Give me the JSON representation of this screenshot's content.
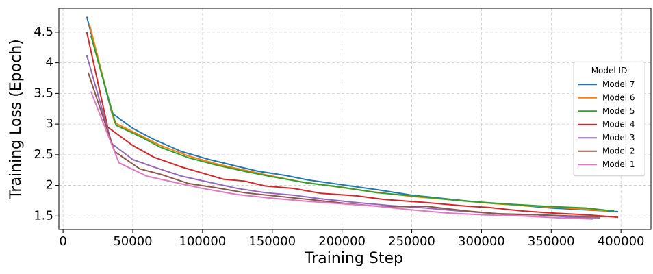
{
  "chart_data": {
    "type": "line",
    "xlabel": "Training Step",
    "ylabel": "Training Loss (Epoch)",
    "xlim": [
      -3000,
      422000
    ],
    "xticks": [
      0,
      50000,
      100000,
      150000,
      200000,
      250000,
      300000,
      350000,
      400000
    ],
    "ylim": [
      1.28,
      4.89
    ],
    "yticks": [
      1.5,
      2.0,
      2.5,
      3.0,
      3.5,
      4.0,
      4.5
    ],
    "grid": true,
    "legend_title": "Model ID",
    "legend_position": "center right",
    "series": [
      {
        "name": "Model 7",
        "color": "#1f77b4",
        "x": [
          17000,
          35000,
          50000,
          65000,
          85000,
          105000,
          125000,
          140000,
          160000,
          175000,
          200000,
          225000,
          250000,
          275000,
          300000,
          325000,
          350000,
          375000,
          398000
        ],
        "values": [
          4.75,
          3.18,
          2.93,
          2.75,
          2.55,
          2.42,
          2.31,
          2.23,
          2.16,
          2.09,
          2.01,
          1.93,
          1.84,
          1.78,
          1.72,
          1.68,
          1.63,
          1.6,
          1.57
        ]
      },
      {
        "name": "Model 6",
        "color": "#ff7f0e",
        "x": [
          19000,
          37000,
          55000,
          70000,
          90000,
          110000,
          130000,
          150000,
          170000,
          195000,
          220000,
          250000,
          280000,
          310000,
          340000,
          370000,
          390000
        ],
        "values": [
          4.62,
          3.02,
          2.82,
          2.65,
          2.48,
          2.35,
          2.25,
          2.15,
          2.06,
          1.98,
          1.9,
          1.82,
          1.76,
          1.7,
          1.66,
          1.62,
          1.58
        ]
      },
      {
        "name": "Model 5",
        "color": "#2ca02c",
        "x": [
          20000,
          38000,
          55000,
          70000,
          90000,
          110000,
          130000,
          150000,
          175000,
          200000,
          225000,
          255000,
          285000,
          315000,
          345000,
          375000,
          395000
        ],
        "values": [
          4.44,
          2.98,
          2.8,
          2.62,
          2.45,
          2.33,
          2.23,
          2.14,
          2.04,
          1.97,
          1.88,
          1.82,
          1.75,
          1.7,
          1.66,
          1.63,
          1.58
        ]
      },
      {
        "name": "Model 4",
        "color": "#d62728",
        "x": [
          17000,
          32000,
          50000,
          65000,
          85000,
          100000,
          115000,
          130000,
          145000,
          165000,
          185000,
          210000,
          230000,
          260000,
          290000,
          305000,
          330000,
          350000,
          375000,
          398000
        ],
        "values": [
          4.5,
          2.95,
          2.65,
          2.46,
          2.3,
          2.2,
          2.1,
          2.07,
          1.99,
          1.95,
          1.87,
          1.83,
          1.77,
          1.72,
          1.66,
          1.64,
          1.58,
          1.55,
          1.52,
          1.48
        ]
      },
      {
        "name": "Model 3",
        "color": "#9467bd",
        "x": [
          17000,
          35000,
          50000,
          65000,
          85000,
          105000,
          125000,
          145000,
          165000,
          185000,
          210000,
          235000,
          260000,
          285000,
          310000,
          340000,
          365000,
          385000
        ],
        "values": [
          4.12,
          2.68,
          2.42,
          2.3,
          2.15,
          2.05,
          1.95,
          1.88,
          1.84,
          1.78,
          1.72,
          1.67,
          1.63,
          1.58,
          1.54,
          1.52,
          1.48,
          1.47
        ]
      },
      {
        "name": "Model 2",
        "color": "#8c564b",
        "x": [
          18000,
          37000,
          55000,
          70000,
          90000,
          110000,
          130000,
          155000,
          180000,
          205000,
          230000,
          260000,
          290000,
          315000,
          340000,
          365000,
          390000
        ],
        "values": [
          3.84,
          2.55,
          2.27,
          2.18,
          2.03,
          1.96,
          1.88,
          1.82,
          1.76,
          1.7,
          1.65,
          1.66,
          1.58,
          1.53,
          1.52,
          1.5,
          1.49
        ]
      },
      {
        "name": "Model 1",
        "color": "#e377c2",
        "x": [
          20000,
          40000,
          60000,
          80000,
          100000,
          125000,
          150000,
          175000,
          200000,
          225000,
          250000,
          275000,
          300000,
          330000,
          355000,
          380000
        ],
        "values": [
          3.53,
          2.37,
          2.15,
          2.05,
          1.95,
          1.85,
          1.79,
          1.74,
          1.7,
          1.66,
          1.6,
          1.55,
          1.52,
          1.5,
          1.47,
          1.45
        ]
      }
    ]
  }
}
